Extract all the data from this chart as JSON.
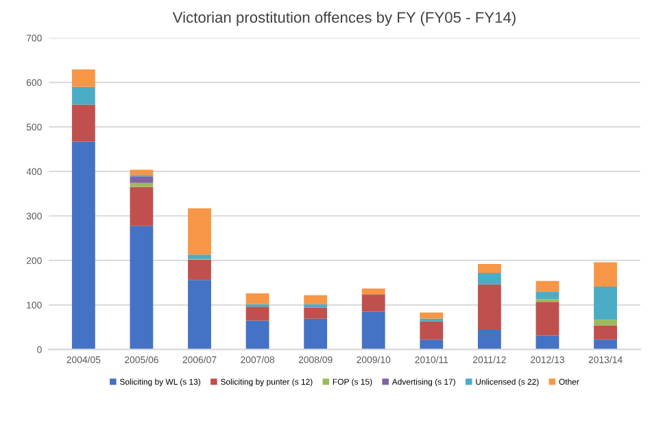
{
  "chart_data": {
    "type": "bar",
    "stacked": true,
    "title": "Victorian prostitution offences by FY (FY05 - FY14)",
    "categories": [
      "2004/05",
      "2005/06",
      "2006/07",
      "2007/08",
      "2008/09",
      "2009/10",
      "2010/11",
      "2011/12",
      "2012/13",
      "2013/14"
    ],
    "series": [
      {
        "name": "Soliciting by WL (s 13)",
        "color": "#4472c4",
        "values": [
          467,
          278,
          156,
          65,
          69,
          85,
          22,
          44,
          31,
          22
        ]
      },
      {
        "name": "Soliciting by punter (s 12)",
        "color": "#c0504d",
        "values": [
          83,
          87,
          46,
          31,
          25,
          39,
          41,
          102,
          76,
          32
        ]
      },
      {
        "name": "FOP (s 15)",
        "color": "#9bbb59",
        "values": [
          0,
          9,
          1,
          0,
          0,
          0,
          0,
          0,
          6,
          13
        ]
      },
      {
        "name": "Advertising (s 17)",
        "color": "#8064a2",
        "values": [
          0,
          15,
          0,
          0,
          0,
          0,
          0,
          0,
          0,
          0
        ]
      },
      {
        "name": "Unlicensed (s 22)",
        "color": "#4bacc6",
        "values": [
          40,
          3,
          10,
          6,
          8,
          0,
          6,
          26,
          17,
          74
        ]
      },
      {
        "name": "Other",
        "color": "#f79646",
        "values": [
          39,
          12,
          104,
          24,
          20,
          13,
          14,
          20,
          24,
          55
        ]
      }
    ],
    "ylim": [
      0,
      700
    ],
    "yticks": [
      0,
      100,
      200,
      300,
      400,
      500,
      600,
      700
    ],
    "grid": "y",
    "legend": "bottom"
  }
}
